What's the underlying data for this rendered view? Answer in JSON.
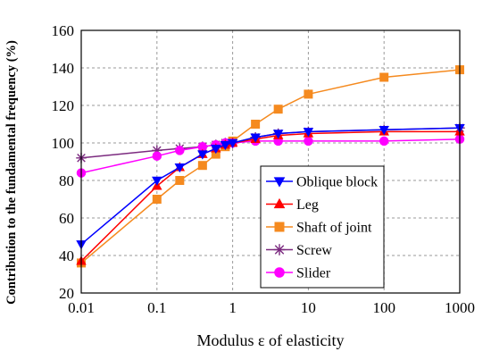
{
  "chart_data": {
    "type": "line",
    "xlabel": "Modulus ε of elasticity",
    "ylabel": "Contribution to the fundamental frequency (%)",
    "x_scale": "log",
    "xlim": [
      0.01,
      1000
    ],
    "ylim": [
      20,
      160
    ],
    "grid": true,
    "legend_position": "lower-right",
    "x_ticks": [
      0.01,
      0.1,
      1,
      10,
      100,
      1000
    ],
    "x_tick_labels": [
      "0.01",
      "0.1",
      "1",
      "10",
      "100",
      "1000"
    ],
    "y_ticks": [
      20,
      40,
      60,
      80,
      100,
      120,
      140,
      160
    ],
    "y_tick_labels": [
      "20",
      "40",
      "60",
      "80",
      "100",
      "120",
      "140",
      "160"
    ],
    "series": [
      {
        "name": "Oblique block",
        "color": "#0000ff",
        "marker": "triangle-down",
        "x": [
          0.01,
          0.1,
          0.2,
          0.4,
          0.6,
          0.8,
          1,
          2,
          4,
          10,
          100,
          1000
        ],
        "y": [
          46,
          80,
          87,
          94,
          97,
          99,
          100,
          103,
          105,
          106,
          107,
          108
        ]
      },
      {
        "name": "Leg",
        "color": "#ff0000",
        "marker": "triangle-up",
        "x": [
          0.01,
          0.1,
          0.2,
          0.4,
          0.6,
          0.8,
          1,
          2,
          4,
          10,
          100,
          1000
        ],
        "y": [
          37,
          77,
          87,
          94,
          97,
          99,
          100,
          102,
          104,
          105,
          106,
          106
        ]
      },
      {
        "name": "Shaft of joint",
        "color": "#f58a1f",
        "marker": "square",
        "x": [
          0.01,
          0.1,
          0.2,
          0.4,
          0.6,
          0.8,
          1,
          2,
          4,
          10,
          100,
          1000
        ],
        "y": [
          36,
          70,
          80,
          88,
          94,
          98,
          101,
          110,
          118,
          126,
          135,
          139
        ]
      },
      {
        "name": "Screw",
        "color": "#7b2a7f",
        "marker": "asterisk",
        "x": [
          0.01,
          0.1,
          0.2,
          0.4,
          0.6,
          0.8,
          1,
          2,
          4,
          10,
          100,
          1000
        ],
        "y": [
          92,
          96,
          97,
          98,
          99,
          100,
          100,
          103,
          105,
          106,
          107,
          108
        ]
      },
      {
        "name": "Slider",
        "color": "#ff00ff",
        "marker": "circle",
        "x": [
          0.01,
          0.1,
          0.2,
          0.4,
          0.6,
          0.8,
          1,
          2,
          4,
          10,
          100,
          1000
        ],
        "y": [
          84,
          93,
          96,
          98,
          99,
          100,
          100,
          101,
          101,
          101,
          101,
          102
        ]
      }
    ]
  }
}
